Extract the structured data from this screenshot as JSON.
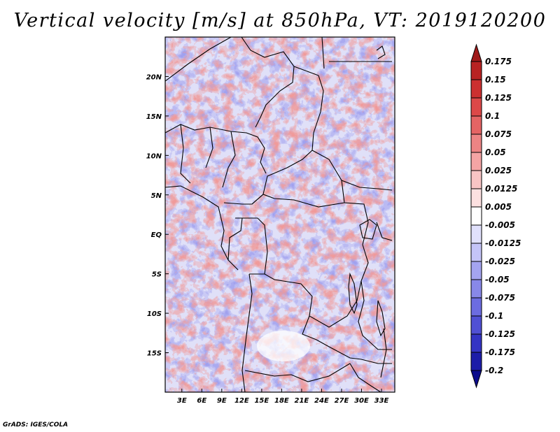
{
  "title": "Vertical velocity [m/s] at 850hPa, VT: 2019120200",
  "credit": "GrADS: IGES/COLA",
  "map": {
    "variable": "Vertical velocity",
    "units": "m/s",
    "level": "850hPa",
    "valid_time": "2019120200",
    "lat_labels": [
      "20N",
      "15N",
      "10N",
      "5N",
      "EQ",
      "5S",
      "10S",
      "15S"
    ],
    "lat_values": [
      20,
      15,
      10,
      5,
      0,
      -5,
      -10,
      -15
    ],
    "lon_labels": [
      "3E",
      "6E",
      "9E",
      "12E",
      "15E",
      "18E",
      "21E",
      "24E",
      "27E",
      "30E",
      "33E"
    ],
    "lon_values": [
      3,
      6,
      9,
      12,
      15,
      18,
      21,
      24,
      27,
      30,
      33
    ],
    "lat_range": [
      -20,
      25
    ],
    "lon_range": [
      0.5,
      35
    ]
  },
  "colorbar": {
    "levels": [
      "0.175",
      "0.15",
      "0.125",
      "0.1",
      "0.075",
      "0.05",
      "0.025",
      "0.0125",
      "0.005",
      "-0.005",
      "-0.0125",
      "-0.025",
      "-0.05",
      "-0.075",
      "-0.1",
      "-0.125",
      "-0.175",
      "-0.2"
    ],
    "colors": [
      "#a01a1a",
      "#b82222",
      "#cc3030",
      "#dc4848",
      "#e46464",
      "#ec8484",
      "#f4a4a4",
      "#f8c4c4",
      "#fce0e0",
      "#ffffff",
      "#e0e0fc",
      "#c4c4f8",
      "#a4a4f0",
      "#8888e8",
      "#6c6ce0",
      "#5050d4",
      "#3434c4",
      "#1c1ca8",
      "#0c0c8c"
    ]
  },
  "colors": {
    "frame": "#000000",
    "positive": "#e46464",
    "negative": "#6c6ce0"
  }
}
